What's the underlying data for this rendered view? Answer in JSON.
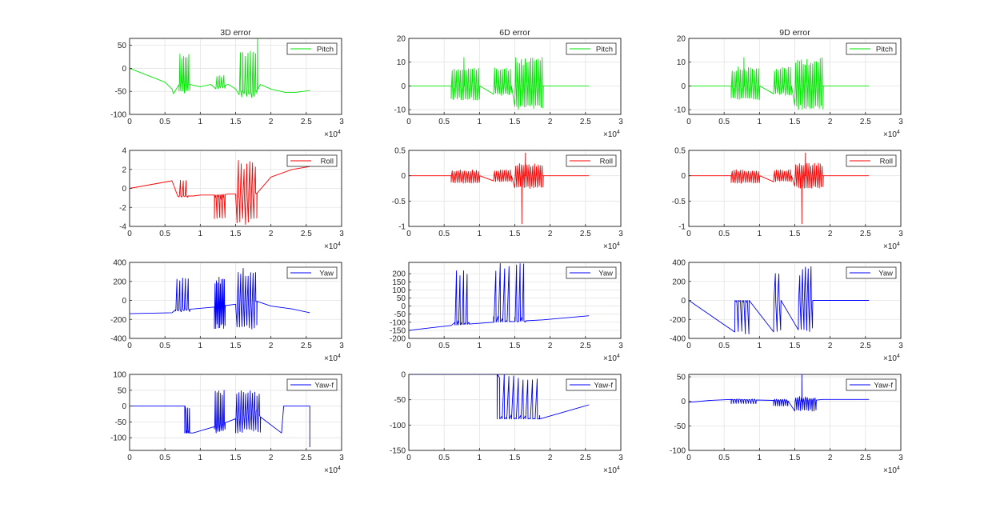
{
  "figure": {
    "columns": [
      "3D error",
      "6D error",
      "9D error"
    ],
    "x_exponent_label": "×10",
    "x_exponent": "4"
  },
  "chart_data": [
    {
      "type": "line",
      "column": 0,
      "row": 0,
      "title": "3D error",
      "legend": "Pitch",
      "color": "#00e600",
      "xlim": [
        0,
        3
      ],
      "ylim": [
        -100,
        65
      ],
      "xticks": [
        0,
        0.5,
        1,
        1.5,
        2,
        2.5,
        3
      ],
      "yticks": [
        -100,
        -50,
        0,
        50
      ],
      "xlabel": "",
      "ylabel": "",
      "x": [
        0,
        0.5,
        0.6,
        0.62,
        0.7,
        0.75,
        0.85,
        1.0,
        1.15,
        1.25,
        1.4,
        1.5,
        1.6,
        1.75,
        1.8,
        1.85,
        2.0,
        2.2,
        2.35,
        2.55
      ],
      "y": [
        0,
        -30,
        -45,
        -55,
        -35,
        -30,
        -35,
        -40,
        -35,
        -40,
        -35,
        -45,
        -50,
        -55,
        -48,
        -35,
        -45,
        -52,
        -52,
        -48
      ],
      "bursts": [
        {
          "x0": 0.7,
          "x1": 0.85,
          "lo": -55,
          "hi": 35,
          "n": 12
        },
        {
          "x0": 1.22,
          "x1": 1.35,
          "lo": -45,
          "hi": -15,
          "n": 8
        },
        {
          "x0": 1.55,
          "x1": 1.8,
          "lo": -65,
          "hi": 40,
          "n": 14
        }
      ],
      "spikes": [
        {
          "x": 1.81,
          "y": 65
        }
      ]
    },
    {
      "type": "line",
      "column": 1,
      "row": 0,
      "title": "6D error",
      "legend": "Pitch",
      "color": "#00e600",
      "xlim": [
        0,
        3
      ],
      "ylim": [
        -12,
        20
      ],
      "xticks": [
        0,
        0.5,
        1,
        1.5,
        2,
        2.5,
        3
      ],
      "yticks": [
        -10,
        0,
        10,
        20
      ],
      "xlabel": "",
      "ylabel": "",
      "x": [
        0,
        0.6,
        1.9,
        2.55
      ],
      "y": [
        0,
        0,
        0,
        0
      ],
      "bursts": [
        {
          "x0": 0.6,
          "x1": 1.0,
          "lo": -6,
          "hi": 8,
          "n": 28
        },
        {
          "x0": 1.2,
          "x1": 1.45,
          "lo": -4,
          "hi": 8,
          "n": 18
        },
        {
          "x0": 1.5,
          "x1": 1.9,
          "lo": -10,
          "hi": 12,
          "n": 30
        }
      ],
      "spikes": [
        {
          "x": 0.78,
          "y": 12
        },
        {
          "x": 1.55,
          "y": -10
        }
      ]
    },
    {
      "type": "line",
      "column": 2,
      "row": 0,
      "title": "9D error",
      "legend": "Pitch",
      "color": "#00e600",
      "xlim": [
        0,
        3
      ],
      "ylim": [
        -12,
        20
      ],
      "xticks": [
        0,
        0.5,
        1,
        1.5,
        2,
        2.5,
        3
      ],
      "yticks": [
        -10,
        0,
        10,
        20
      ],
      "xlabel": "",
      "ylabel": "",
      "x": [
        0,
        0.6,
        1.9,
        2.55
      ],
      "y": [
        0,
        0,
        0,
        0
      ],
      "bursts": [
        {
          "x0": 0.6,
          "x1": 1.0,
          "lo": -6,
          "hi": 8,
          "n": 28
        },
        {
          "x0": 1.2,
          "x1": 1.45,
          "lo": -4,
          "hi": 8,
          "n": 18
        },
        {
          "x0": 1.5,
          "x1": 1.9,
          "lo": -10,
          "hi": 12,
          "n": 30
        }
      ],
      "spikes": [
        {
          "x": 0.78,
          "y": 12
        },
        {
          "x": 1.55,
          "y": -10
        }
      ]
    },
    {
      "type": "line",
      "column": 0,
      "row": 1,
      "title": "",
      "legend": "Roll",
      "color": "#ff0000",
      "xlim": [
        0,
        3
      ],
      "ylim": [
        -4,
        4
      ],
      "xticks": [
        0,
        0.5,
        1,
        1.5,
        2,
        2.5,
        3
      ],
      "yticks": [
        -4,
        -2,
        0,
        2,
        4
      ],
      "xlabel": "",
      "ylabel": "",
      "x": [
        0,
        0.6,
        0.63,
        0.68,
        0.8,
        0.9,
        1.0,
        1.2,
        1.4,
        1.5,
        1.55,
        1.8,
        2.0,
        2.3,
        2.55
      ],
      "y": [
        0,
        0.8,
        0.2,
        -0.8,
        -0.8,
        -0.8,
        -0.7,
        -0.7,
        -0.6,
        -0.6,
        -1.0,
        -0.5,
        1.2,
        2.0,
        2.3
      ],
      "bursts": [
        {
          "x0": 0.7,
          "x1": 0.82,
          "lo": -1,
          "hi": 1,
          "n": 6
        },
        {
          "x0": 1.2,
          "x1": 1.35,
          "lo": -3.3,
          "hi": -0.8,
          "n": 8
        },
        {
          "x0": 1.52,
          "x1": 1.8,
          "lo": -3.8,
          "hi": 3,
          "n": 14
        }
      ],
      "spikes": []
    },
    {
      "type": "line",
      "column": 1,
      "row": 1,
      "title": "",
      "legend": "Roll",
      "color": "#ff0000",
      "xlim": [
        0,
        3
      ],
      "ylim": [
        -1,
        0.5
      ],
      "xticks": [
        0,
        0.5,
        1,
        1.5,
        2,
        2.5,
        3
      ],
      "yticks": [
        -1,
        -0.5,
        0,
        0.5
      ],
      "xlabel": "",
      "ylabel": "",
      "x": [
        0,
        0.6,
        1.9,
        2.55
      ],
      "y": [
        0,
        0,
        0,
        0
      ],
      "bursts": [
        {
          "x0": 0.6,
          "x1": 1.0,
          "lo": -0.15,
          "hi": 0.12,
          "n": 28
        },
        {
          "x0": 1.2,
          "x1": 1.45,
          "lo": -0.12,
          "hi": 0.12,
          "n": 18
        },
        {
          "x0": 1.5,
          "x1": 1.9,
          "lo": -0.25,
          "hi": 0.25,
          "n": 30
        }
      ],
      "spikes": [
        {
          "x": 1.6,
          "y": -0.95
        },
        {
          "x": 1.65,
          "y": 0.45
        }
      ]
    },
    {
      "type": "line",
      "column": 2,
      "row": 1,
      "title": "",
      "legend": "Roll",
      "color": "#ff0000",
      "xlim": [
        0,
        3
      ],
      "ylim": [
        -1,
        0.5
      ],
      "xticks": [
        0,
        0.5,
        1,
        1.5,
        2,
        2.5,
        3
      ],
      "yticks": [
        -1,
        -0.5,
        0,
        0.5
      ],
      "xlabel": "",
      "ylabel": "",
      "x": [
        0,
        0.6,
        1.9,
        2.55
      ],
      "y": [
        0,
        0,
        0,
        0
      ],
      "bursts": [
        {
          "x0": 0.6,
          "x1": 1.0,
          "lo": -0.15,
          "hi": 0.12,
          "n": 28
        },
        {
          "x0": 1.2,
          "x1": 1.45,
          "lo": -0.12,
          "hi": 0.12,
          "n": 18
        },
        {
          "x0": 1.5,
          "x1": 1.9,
          "lo": -0.25,
          "hi": 0.25,
          "n": 30
        }
      ],
      "spikes": [
        {
          "x": 1.6,
          "y": -0.95
        },
        {
          "x": 1.65,
          "y": 0.45
        }
      ]
    },
    {
      "type": "line",
      "column": 0,
      "row": 2,
      "title": "",
      "legend": "Yaw",
      "color": "#0000ff",
      "xlim": [
        0,
        3
      ],
      "ylim": [
        -400,
        400
      ],
      "xticks": [
        0,
        0.5,
        1,
        1.5,
        2,
        2.5,
        3
      ],
      "yticks": [
        -400,
        -200,
        0,
        200,
        400
      ],
      "xlabel": "",
      "ylabel": "",
      "x": [
        0,
        0.6,
        0.65,
        0.9,
        1.2,
        1.5,
        1.8,
        2.0,
        2.3,
        2.55
      ],
      "y": [
        -140,
        -130,
        -100,
        -90,
        -70,
        -40,
        -10,
        -60,
        -90,
        -130
      ],
      "bursts": [
        {
          "x0": 0.65,
          "x1": 0.85,
          "lo": -120,
          "hi": 250,
          "n": 10
        },
        {
          "x0": 1.2,
          "x1": 1.35,
          "lo": -300,
          "hi": 250,
          "n": 16
        },
        {
          "x0": 1.52,
          "x1": 1.8,
          "lo": -310,
          "hi": 340,
          "n": 16
        }
      ],
      "spikes": []
    },
    {
      "type": "line",
      "column": 1,
      "row": 2,
      "title": "",
      "legend": "Yaw",
      "color": "#0000ff",
      "xlim": [
        0,
        3
      ],
      "ylim": [
        -200,
        270
      ],
      "xticks": [
        0,
        0.5,
        1,
        1.5,
        2,
        2.5,
        3
      ],
      "yticks": [
        -200,
        -150,
        -100,
        -50,
        0,
        50,
        100,
        150,
        200
      ],
      "xlabel": "",
      "ylabel": "",
      "x": [
        0,
        0.6,
        1.2,
        1.5,
        1.9,
        2.55
      ],
      "y": [
        -150,
        -120,
        -100,
        -95,
        -85,
        -60
      ],
      "bursts": [
        {
          "x0": 0.65,
          "x1": 0.85,
          "lo": -120,
          "hi": 240,
          "n": 8
        },
        {
          "x0": 1.2,
          "x1": 1.45,
          "lo": -100,
          "hi": 270,
          "n": 8
        },
        {
          "x0": 1.5,
          "x1": 1.65,
          "lo": -100,
          "hi": 270,
          "n": 6
        }
      ],
      "spikes": []
    },
    {
      "type": "line",
      "column": 2,
      "row": 2,
      "title": "",
      "legend": "Yaw",
      "color": "#0000ff",
      "xlim": [
        0,
        3
      ],
      "ylim": [
        -400,
        400
      ],
      "xticks": [
        0,
        0.5,
        1,
        1.5,
        2,
        2.5,
        3
      ],
      "yticks": [
        -400,
        -200,
        0,
        200,
        400
      ],
      "xlabel": "",
      "ylabel": "",
      "x": [
        0,
        2.55
      ],
      "y": [
        0,
        0
      ],
      "bursts": [
        {
          "x0": 0.65,
          "x1": 0.85,
          "lo": -360,
          "hi": 0,
          "n": 8
        },
        {
          "x0": 1.2,
          "x1": 1.3,
          "lo": -360,
          "hi": 360,
          "n": 4
        },
        {
          "x0": 1.55,
          "x1": 1.75,
          "lo": -360,
          "hi": 360,
          "n": 10
        }
      ],
      "spikes": []
    },
    {
      "type": "line",
      "column": 0,
      "row": 3,
      "title": "",
      "legend": "Yaw-f",
      "color": "#0000ff",
      "xlim": [
        0,
        3
      ],
      "ylim": [
        -140,
        100
      ],
      "xticks": [
        0,
        0.5,
        1,
        1.5,
        2,
        2.5,
        3
      ],
      "yticks": [
        -100,
        -50,
        0,
        50,
        100
      ],
      "xlabel": "",
      "ylabel": "",
      "x": [
        0,
        0.78,
        0.78,
        0.9,
        1.2,
        1.5,
        1.8,
        1.85,
        2.15,
        2.18,
        2.5,
        2.55,
        2.55
      ],
      "y": [
        0,
        0,
        -85,
        -85,
        -65,
        -40,
        -15,
        -35,
        -85,
        0,
        0,
        0,
        -130
      ],
      "bursts": [
        {
          "x0": 0.78,
          "x1": 0.86,
          "lo": -85,
          "hi": 0,
          "n": 6
        },
        {
          "x0": 1.2,
          "x1": 1.35,
          "lo": -85,
          "hi": 50,
          "n": 12
        },
        {
          "x0": 1.5,
          "x1": 1.85,
          "lo": -85,
          "hi": 50,
          "n": 22
        }
      ],
      "spikes": []
    },
    {
      "type": "line",
      "column": 1,
      "row": 3,
      "title": "",
      "legend": "Yaw-f",
      "color": "#0000ff",
      "xlim": [
        0,
        3
      ],
      "ylim": [
        -150,
        0
      ],
      "xticks": [
        0,
        0.5,
        1,
        1.5,
        2,
        2.5,
        3
      ],
      "yticks": [
        -150,
        -100,
        -50,
        0
      ],
      "xlabel": "",
      "ylabel": "",
      "x": [
        0,
        1.25,
        1.25,
        1.85,
        1.85,
        2.55
      ],
      "y": [
        0,
        0,
        -88,
        -88,
        -88,
        -60
      ],
      "bursts": [
        {
          "x0": 1.25,
          "x1": 1.85,
          "lo": -88,
          "hi": 0,
          "n": 18
        }
      ],
      "spikes": []
    },
    {
      "type": "line",
      "column": 2,
      "row": 3,
      "title": "",
      "legend": "Yaw-f",
      "color": "#0000ff",
      "xlim": [
        0,
        3
      ],
      "ylim": [
        -100,
        55
      ],
      "xticks": [
        0,
        0.5,
        1,
        1.5,
        2,
        2.5,
        3
      ],
      "yticks": [
        -100,
        -50,
        0,
        50
      ],
      "xlabel": "",
      "ylabel": "",
      "x": [
        0,
        0.3,
        0.6,
        1.2,
        1.6,
        1.9,
        2.55
      ],
      "y": [
        -2,
        2,
        4,
        2,
        0,
        4,
        4
      ],
      "bursts": [
        {
          "x0": 0.6,
          "x1": 0.95,
          "lo": -5,
          "hi": 5,
          "n": 20
        },
        {
          "x0": 1.2,
          "x1": 1.4,
          "lo": -10,
          "hi": 5,
          "n": 14
        },
        {
          "x0": 1.5,
          "x1": 1.8,
          "lo": -20,
          "hi": 10,
          "n": 22
        }
      ],
      "spikes": [
        {
          "x": 1.6,
          "y": 55
        }
      ]
    }
  ]
}
